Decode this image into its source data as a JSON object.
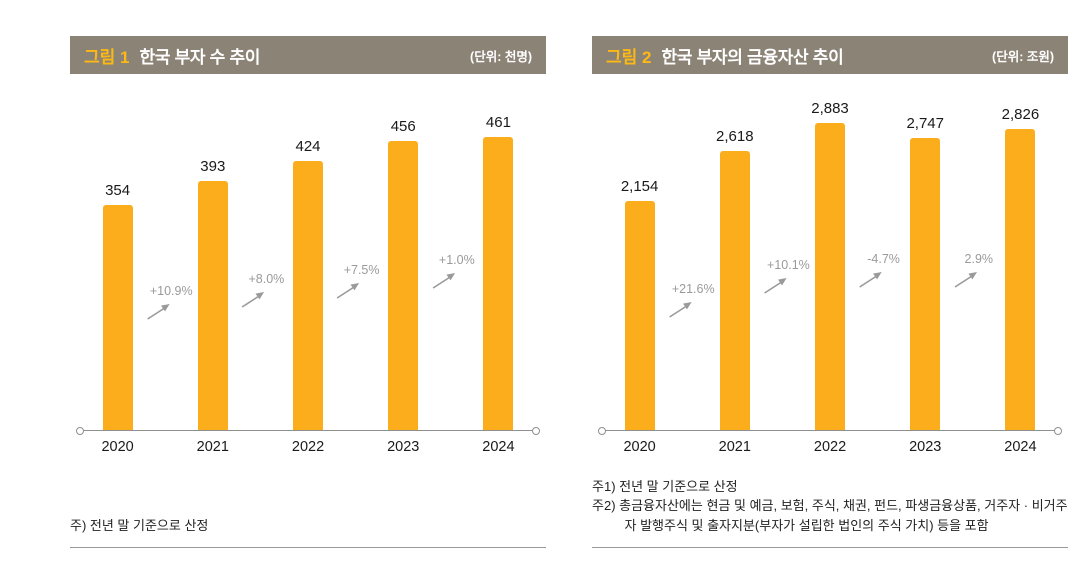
{
  "colors": {
    "bar": "#FBAD1C",
    "header_bg": "#8C8377",
    "figure_label": "#FDB813",
    "header_text": "#FFFFFF",
    "growth_text": "#9A9A9A",
    "axis": "#8F8F8F",
    "value_text": "#1A1A1A",
    "note_text": "#222222"
  },
  "charts": [
    {
      "figure_label": "그림 1",
      "title": "한국 부자 수 추이",
      "unit": "(단위: 천명)",
      "chart_data": {
        "type": "bar",
        "categories": [
          "2020",
          "2021",
          "2022",
          "2023",
          "2024"
        ],
        "values": [
          354,
          393,
          424,
          456,
          461
        ],
        "value_labels": [
          "354",
          "393",
          "424",
          "456",
          "461"
        ],
        "growth_labels": [
          "+10.9%",
          "+8.0%",
          "+7.5%",
          "+1.0%"
        ],
        "title": "한국 부자 수 추이",
        "xlabel": "",
        "ylabel": "천명",
        "ylim": [
          0,
          520
        ],
        "grid": false,
        "legend": false
      },
      "notes": [
        "주) 전년 말 기준으로 산정"
      ]
    },
    {
      "figure_label": "그림 2",
      "title": "한국 부자의 금융자산 추이",
      "unit": "(단위: 조원)",
      "chart_data": {
        "type": "bar",
        "categories": [
          "2020",
          "2021",
          "2022",
          "2023",
          "2024"
        ],
        "values": [
          2154,
          2618,
          2883,
          2747,
          2826
        ],
        "value_labels": [
          "2,154",
          "2,618",
          "2,883",
          "2,747",
          "2,826"
        ],
        "growth_labels": [
          "+21.6%",
          "+10.1%",
          "-4.7%",
          "2.9%"
        ],
        "title": "한국 부자의 금융자산 추이",
        "xlabel": "",
        "ylabel": "조원",
        "ylim": [
          0,
          3100
        ],
        "grid": false,
        "legend": false
      },
      "notes": [
        "주1) 전년 말 기준으로 산정",
        "주2) 총금융자산에는 현금 및 예금, 보험, 주식, 채권, 펀드, 파생금융상품, 거주자 · 비거주자 발행주식 및 출자지분(부자가 설립한 법인의 주식 가치) 등을 포함"
      ]
    }
  ]
}
